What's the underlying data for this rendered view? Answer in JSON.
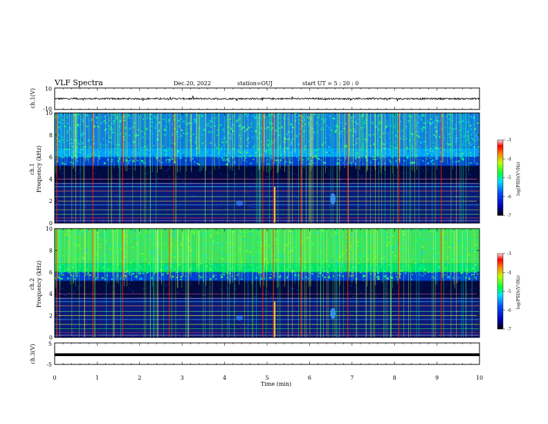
{
  "header": {
    "title": "VLF Spectra",
    "date": "Dec.20, 2022",
    "station": "station=OUJ",
    "start": "start  UT =   5 : 20 : 0"
  },
  "chart_data": {
    "type": "heatmap",
    "xlabel": "Time (min)",
    "xlim": [
      0,
      10
    ],
    "xticks": [
      "0",
      "1",
      "2",
      "3",
      "4",
      "5",
      "6",
      "7",
      "8",
      "9",
      "10"
    ],
    "panels": [
      {
        "name": "ch1-waveform",
        "type": "line",
        "ylabel": "ch.1(V)",
        "ylim": [
          -10,
          10
        ],
        "yticks": [
          "10",
          "-10"
        ],
        "approx_level": 0,
        "approx_amplitude": 1.5
      },
      {
        "name": "ch1-spectrogram",
        "type": "heatmap",
        "ylabel_line1": "ch.1",
        "ylabel_line2": "Frequency (kHz)",
        "ylim": [
          0,
          10
        ],
        "yticks": [
          "0",
          "2",
          "4",
          "6",
          "8",
          "10"
        ],
        "impulsive_events_min": [
          0.05,
          0.9,
          1.6,
          2.8,
          4.9,
          5.15,
          5.8,
          6.9,
          8.1,
          9.1
        ],
        "colorbar_label": "log(PSD)(V²/Hz)",
        "colorbar_range": [
          -7,
          -3
        ],
        "colorbar_ticks": [
          "-3",
          "-4",
          "-5",
          "-6",
          "-7"
        ]
      },
      {
        "name": "ch2-spectrogram",
        "type": "heatmap",
        "ylabel_line1": "ch.2",
        "ylabel_line2": "Frequency (kHz)",
        "ylim": [
          0,
          10
        ],
        "yticks": [
          "0",
          "2",
          "4",
          "6",
          "8",
          "10"
        ],
        "impulsive_events_min": [
          0.05,
          0.9,
          1.6,
          2.7,
          4.9,
          5.15,
          5.8,
          6.9,
          8.1,
          9.1
        ],
        "colorbar_label": "log(PSD)(V²/Hz)",
        "colorbar_range": [
          -7,
          -3
        ],
        "colorbar_ticks": [
          "-3",
          "-4",
          "-5",
          "-6",
          "-7"
        ]
      },
      {
        "name": "ch3-waveform",
        "type": "line",
        "ylabel": "ch.3(V)",
        "ylim": [
          -5,
          5
        ],
        "yticks": [
          "5",
          "-5"
        ],
        "approx_level": -0.5
      }
    ]
  }
}
